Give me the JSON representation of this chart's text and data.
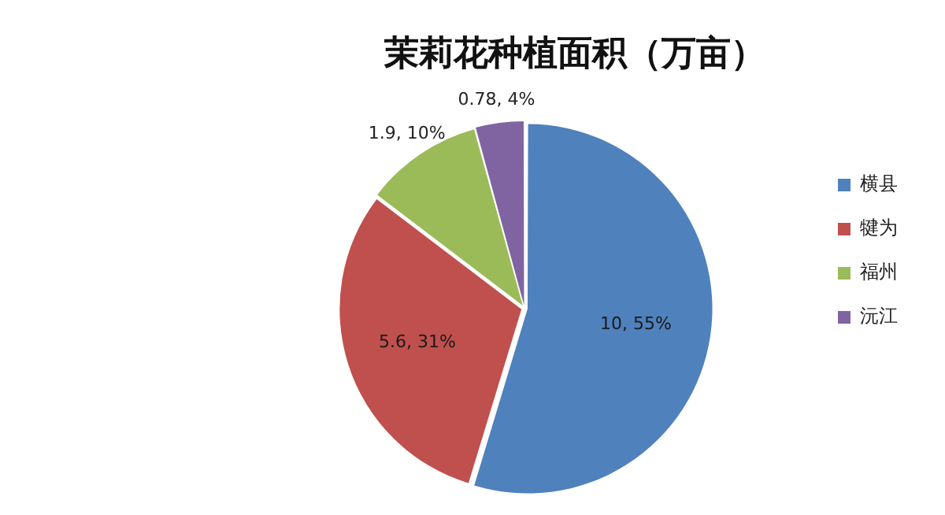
{
  "chart_data": {
    "type": "pie",
    "title": "茉莉花种植面积（万亩）",
    "categories": [
      "横县",
      "犍为",
      "福州",
      "沅江"
    ],
    "values": [
      10,
      5.6,
      1.9,
      0.78
    ],
    "colors": [
      "#4f81bd",
      "#c0504d",
      "#9bbb59",
      "#8064a2"
    ],
    "value_labels": [
      "10, 55%",
      "5.6, 31%",
      "1.9, 10%",
      "0.78, 4%"
    ],
    "legend": "right"
  }
}
